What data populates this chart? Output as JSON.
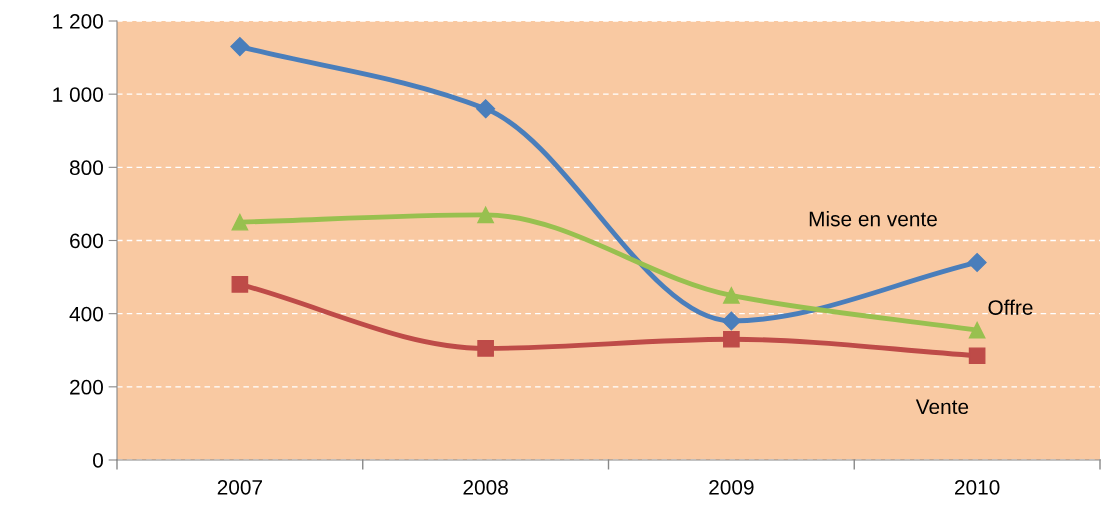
{
  "chart_data": {
    "type": "line",
    "categories": [
      "2007",
      "2008",
      "2009",
      "2010"
    ],
    "series": [
      {
        "name": "Mise en vente",
        "color": "#4a7ebb",
        "marker": "diamond",
        "values": [
          1130,
          960,
          380,
          540
        ]
      },
      {
        "name": "Offre",
        "color": "#98c04f",
        "marker": "triangle",
        "values": [
          650,
          670,
          450,
          355
        ]
      },
      {
        "name": "Vente",
        "color": "#be4b48",
        "marker": "square",
        "values": [
          480,
          305,
          330,
          285
        ]
      }
    ],
    "ylim": [
      0,
      1200
    ],
    "yticks": [
      0,
      200,
      400,
      600,
      800,
      {
        "value": 1000,
        "label": "1 000"
      },
      {
        "value": 1200,
        "label": "1 200"
      }
    ],
    "grid": "y",
    "legend": false
  }
}
